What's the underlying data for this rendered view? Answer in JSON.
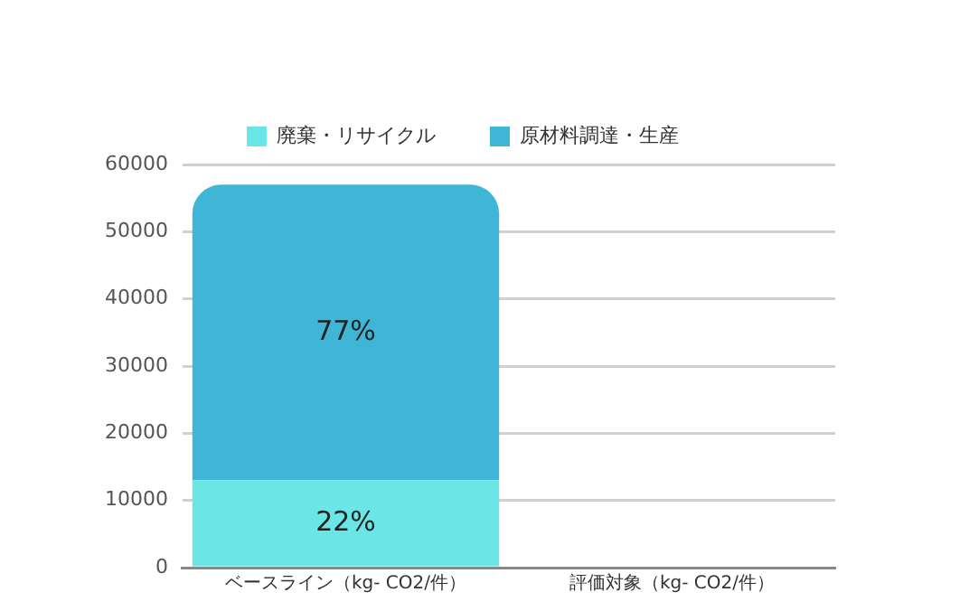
{
  "chart_data": {
    "type": "bar",
    "stacked": true,
    "categories": [
      "ベースライン（kg- CO2/件）",
      "評価対象（kg- CO2/件）"
    ],
    "series": [
      {
        "name": "廃棄・リサイクル",
        "color": "#6ae6e6",
        "values": [
          13000,
          null
        ]
      },
      {
        "name": "原材料調達・生産",
        "color": "#40b6d6",
        "values": [
          44000,
          null
        ]
      }
    ],
    "annotations": [
      "22%",
      "77%"
    ],
    "ylim": [
      0,
      60000
    ],
    "yticks": [
      0,
      10000,
      20000,
      30000,
      40000,
      50000,
      60000
    ],
    "grid": "y",
    "legend": "top"
  }
}
